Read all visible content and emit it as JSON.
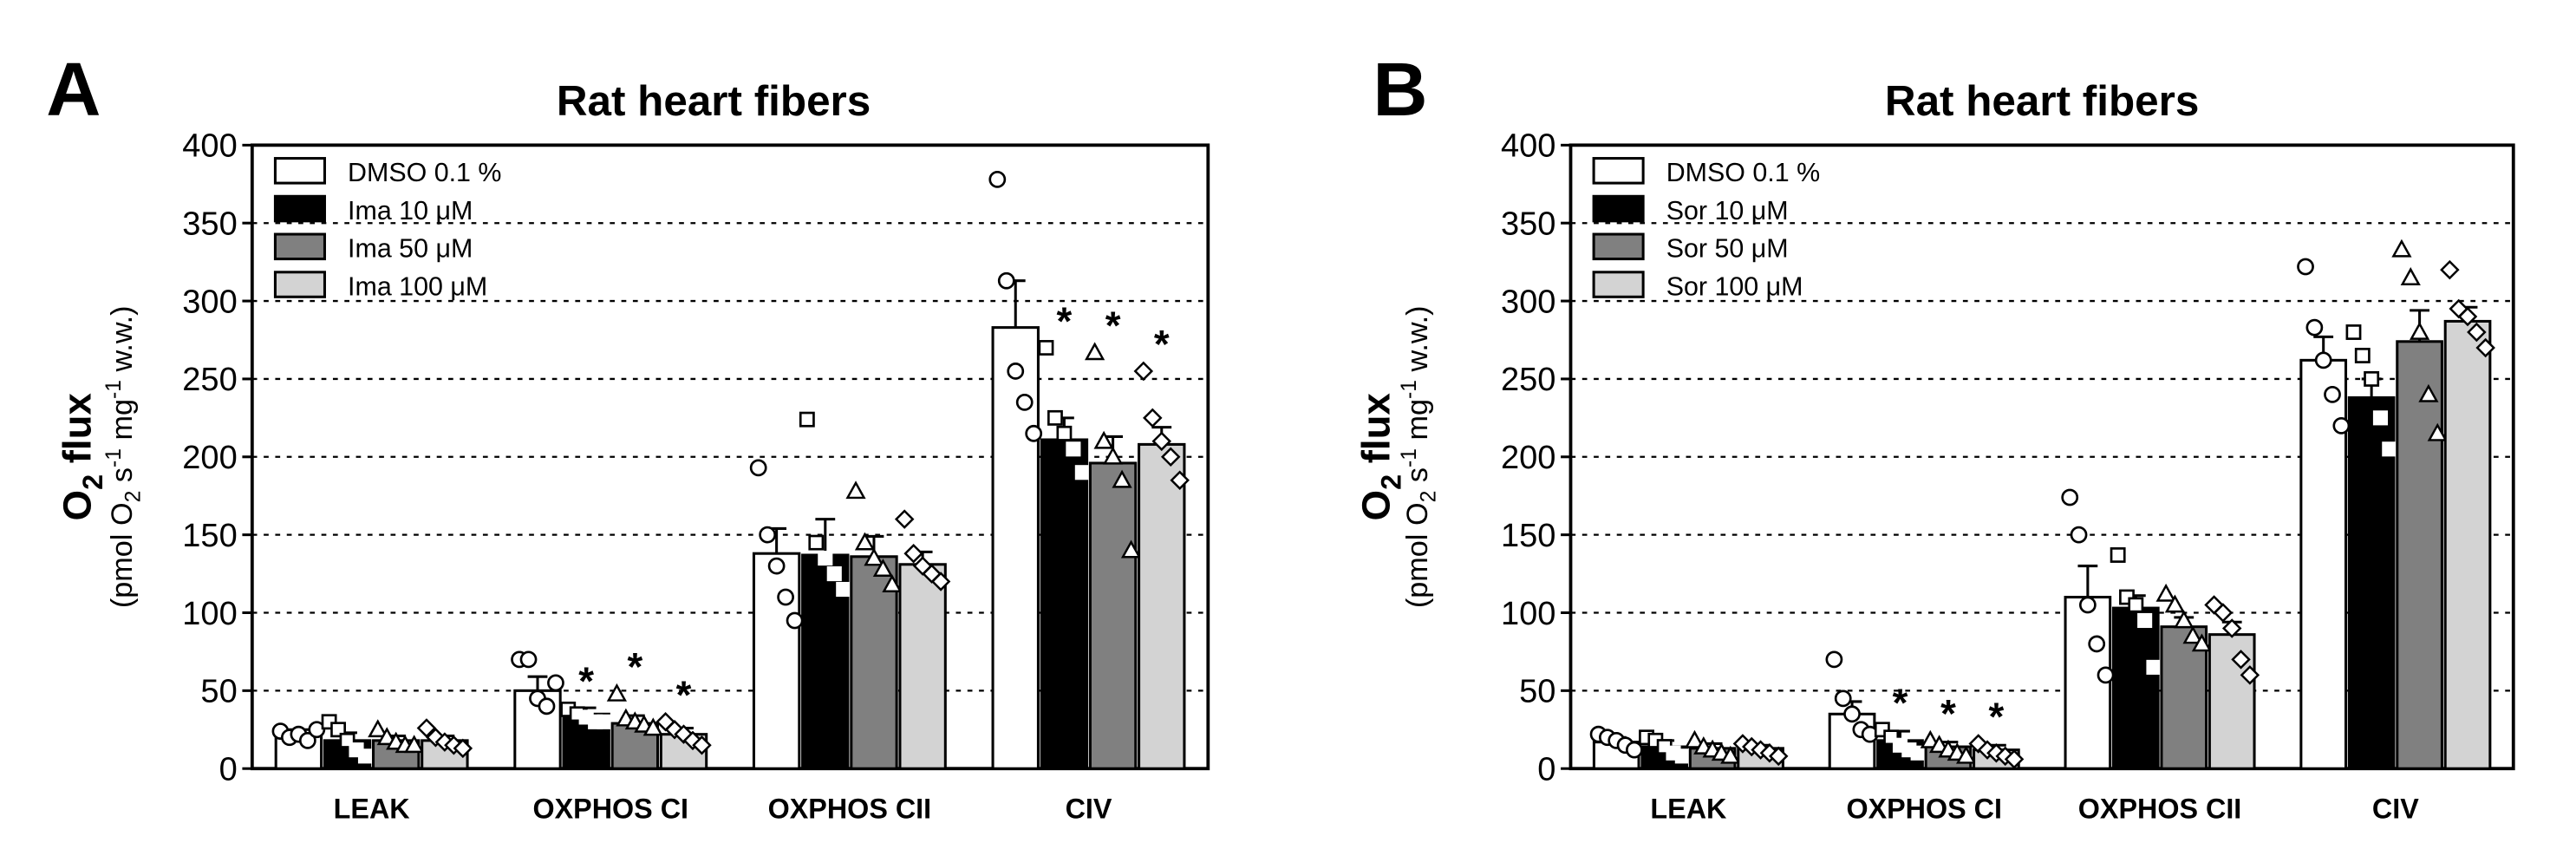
{
  "chart_data": [
    {
      "type": "bar",
      "panel_letter": "A",
      "title": "Rat heart fibers",
      "ylabel_main": "O2 flux",
      "ylabel_main_parts": {
        "base": "O",
        "sub": "2",
        "rest": " flux"
      },
      "ylabel_units": "(pmol O2 s-1 mg-1 w.w.)",
      "ylabel_units_parts": [
        "(pmol O",
        "2",
        " s",
        "-1",
        " mg",
        "-1",
        " w.w.)"
      ],
      "ylim": [
        0,
        400
      ],
      "yticks": [
        0,
        50,
        100,
        150,
        200,
        250,
        300,
        350,
        400
      ],
      "grid": "dotted horizontal at 50, 100, 150, 200, 250, 300, 350",
      "legend_position": "top-left",
      "categories": [
        "LEAK",
        "OXPHOS CI",
        "OXPHOS CII",
        "CIV"
      ],
      "series": [
        {
          "name": "DMSO 0.1 %",
          "fill": "#ffffff",
          "marker": "circle",
          "markerStroke": "#000000",
          "values": [
            22,
            50,
            138,
            283
          ],
          "errors": [
            3,
            9,
            16,
            30
          ],
          "points": [
            [
              24,
              20,
              22,
              18,
              25
            ],
            [
              70,
              70,
              45,
              40,
              55
            ],
            [
              193,
              150,
              130,
              110,
              95
            ],
            [
              378,
              313,
              255,
              235,
              215
            ]
          ]
        },
        {
          "name": "Ima 10 μM",
          "fill": "#000000",
          "marker": "square",
          "markerStroke": "#ffffff",
          "values": [
            18,
            35,
            137,
            211
          ],
          "errors": [
            5,
            4,
            23,
            14
          ],
          "points": [
            [
              30,
              25,
              18,
              12,
              8
            ],
            [
              38,
              35,
              33,
              30,
              30
            ],
            [
              224,
              145,
              135,
              125,
              115
            ],
            [
              270,
              225,
              215,
              205,
              190
            ]
          ]
        },
        {
          "name": "Ima 50 μM",
          "fill": "#808080",
          "marker": "triangle",
          "markerStroke": "#000000",
          "values": [
            18,
            29,
            136,
            196
          ],
          "errors": [
            3,
            5,
            13,
            17
          ],
          "points": [
            [
              25,
              20,
              17,
              15,
              15
            ],
            [
              48,
              32,
              30,
              28,
              26
            ],
            [
              178,
              145,
              135,
              128,
              118
            ],
            [
              267,
              210,
              200,
              185,
              140
            ]
          ]
        },
        {
          "name": "Ima 100 μM",
          "fill": "#d3d3d3",
          "marker": "diamond",
          "markerStroke": "#000000",
          "values": [
            18,
            22,
            131,
            208
          ],
          "errors": [
            3,
            4,
            8,
            11
          ],
          "points": [
            [
              26,
              20,
              17,
              15,
              13
            ],
            [
              30,
              25,
              22,
              18,
              15
            ],
            [
              160,
              138,
              130,
              125,
              120
            ],
            [
              255,
              225,
              210,
              200,
              185
            ]
          ]
        }
      ],
      "significance_label": "*",
      "significance": [
        [
          false,
          false,
          false,
          false
        ],
        [
          false,
          true,
          true,
          true
        ],
        [
          false,
          false,
          false,
          false
        ],
        [
          false,
          true,
          true,
          true
        ]
      ]
    },
    {
      "type": "bar",
      "panel_letter": "B",
      "title": "Rat heart fibers",
      "ylabel_main": "O2 flux",
      "ylabel_main_parts": {
        "base": "O",
        "sub": "2",
        "rest": " flux"
      },
      "ylabel_units": "(pmol O2 s-1 mg-1 w.w.)",
      "ylabel_units_parts": [
        "(pmol O",
        "2",
        " s",
        "-1",
        " mg",
        "-1",
        " w.w.)"
      ],
      "ylim": [
        0,
        400
      ],
      "yticks": [
        0,
        50,
        100,
        150,
        200,
        250,
        300,
        350,
        400
      ],
      "grid": "dotted horizontal at 50, 100, 150, 200, 250, 300, 350",
      "legend_position": "top-left",
      "categories": [
        "LEAK",
        "OXPHOS CI",
        "OXPHOS CII",
        "CIV"
      ],
      "series": [
        {
          "name": "DMSO 0.1 %",
          "fill": "#ffffff",
          "marker": "circle",
          "markerStroke": "#000000",
          "values": [
            17,
            35,
            110,
            262
          ],
          "errors": [
            3,
            8,
            20,
            15
          ],
          "points": [
            [
              22,
              20,
              18,
              15,
              12
            ],
            [
              70,
              45,
              35,
              25,
              22
            ],
            [
              174,
              150,
              105,
              80,
              60
            ],
            [
              322,
              283,
              262,
              240,
              220
            ]
          ]
        },
        {
          "name": "Sor 10 μM",
          "fill": "#000000",
          "marker": "square",
          "markerStroke": "#ffffff",
          "values": [
            14,
            18,
            103,
            238
          ],
          "errors": [
            4,
            6,
            8,
            12
          ],
          "points": [
            [
              20,
              18,
              14,
              10,
              8
            ],
            [
              25,
              20,
              15,
              12,
              10
            ],
            [
              137,
              110,
              105,
              95,
              65
            ],
            [
              280,
              265,
              250,
              225,
              205
            ]
          ]
        },
        {
          "name": "Sor 50 μM",
          "fill": "#808080",
          "marker": "triangle",
          "markerStroke": "#000000",
          "values": [
            13,
            14,
            91,
            274
          ],
          "errors": [
            3,
            3,
            6,
            20
          ],
          "points": [
            [
              18,
              14,
              12,
              10,
              8
            ],
            [
              18,
              15,
              12,
              10,
              8
            ],
            [
              112,
              105,
              95,
              85,
              80
            ],
            [
              333,
              315,
              280,
              240,
              215
            ]
          ]
        },
        {
          "name": "Sor 100 μM",
          "fill": "#d3d3d3",
          "marker": "diamond",
          "markerStroke": "#000000",
          "values": [
            13,
            12,
            86,
            287
          ],
          "errors": [
            2,
            3,
            8,
            9
          ],
          "points": [
            [
              16,
              14,
              12,
              10,
              8
            ],
            [
              16,
              12,
              10,
              8,
              6
            ],
            [
              105,
              100,
              90,
              70,
              60
            ],
            [
              320,
              295,
              290,
              280,
              270
            ]
          ]
        }
      ],
      "significance_label": "*",
      "significance": [
        [
          false,
          false,
          false,
          false
        ],
        [
          false,
          true,
          true,
          true
        ],
        [
          false,
          false,
          false,
          false
        ],
        [
          false,
          false,
          false,
          false
        ]
      ]
    }
  ]
}
